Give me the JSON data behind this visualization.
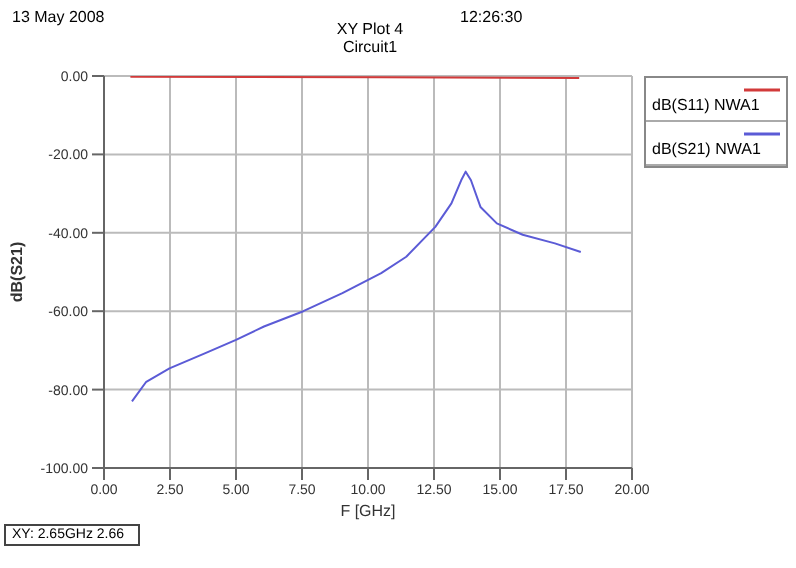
{
  "chart_data": {
    "type": "line",
    "title": "XY Plot 4",
    "subtitle": "Circuit1",
    "xlabel": "F [GHz]",
    "ylabel": "dB(S21)",
    "annotations": [
      "13 May 2008",
      "12:26:30",
      "XY: 2.65GHz 2.66"
    ],
    "xlim": [
      0,
      20
    ],
    "xticks": [
      {
        "value": 0,
        "label": "0.00"
      },
      {
        "value": 2.5,
        "label": "2.50"
      },
      {
        "value": 5,
        "label": "5.00"
      },
      {
        "value": 7.5,
        "label": "7.50"
      },
      {
        "value": 10,
        "label": "10.00"
      },
      {
        "value": 12.5,
        "label": "12.50"
      },
      {
        "value": 15,
        "label": "15.00"
      },
      {
        "value": 17.5,
        "label": "17.50"
      },
      {
        "value": 20,
        "label": "20.00"
      }
    ],
    "ylim": [
      -100,
      0
    ],
    "yticks": [
      {
        "value": -100,
        "label": "-100.00"
      },
      {
        "value": -80,
        "label": "-80.00"
      },
      {
        "value": -60,
        "label": "-60.00"
      },
      {
        "value": -40,
        "label": "-40.00"
      },
      {
        "value": -20,
        "label": "-20.00"
      },
      {
        "value": 0,
        "label": "0.00"
      }
    ],
    "grid": true,
    "legend": "right",
    "series": [
      {
        "name": "dB(S21) NWA1",
        "color": "#5b5bd6",
        "x": [
          1.06,
          1.6,
          2.48,
          3.84,
          5.0,
          6.06,
          7.55,
          9.03,
          10.5,
          11.45,
          12.55,
          13.16,
          13.53,
          13.7,
          13.9,
          14.26,
          14.88,
          15.86,
          17.08,
          18.06
        ],
        "values": [
          -83,
          -78,
          -74.6,
          -70.7,
          -67.3,
          -63.9,
          -60,
          -55.4,
          -50.3,
          -46.1,
          -38.5,
          -32.5,
          -26.6,
          -24.4,
          -26.6,
          -33.4,
          -37.6,
          -40.5,
          -42.7,
          -44.9
        ]
      },
      {
        "name": "dB(S11) NWA1",
        "color": "#d23a3a",
        "x": [
          1,
          10.5,
          18
        ],
        "values": [
          -0.2,
          -0.3,
          -0.5
        ]
      }
    ]
  }
}
